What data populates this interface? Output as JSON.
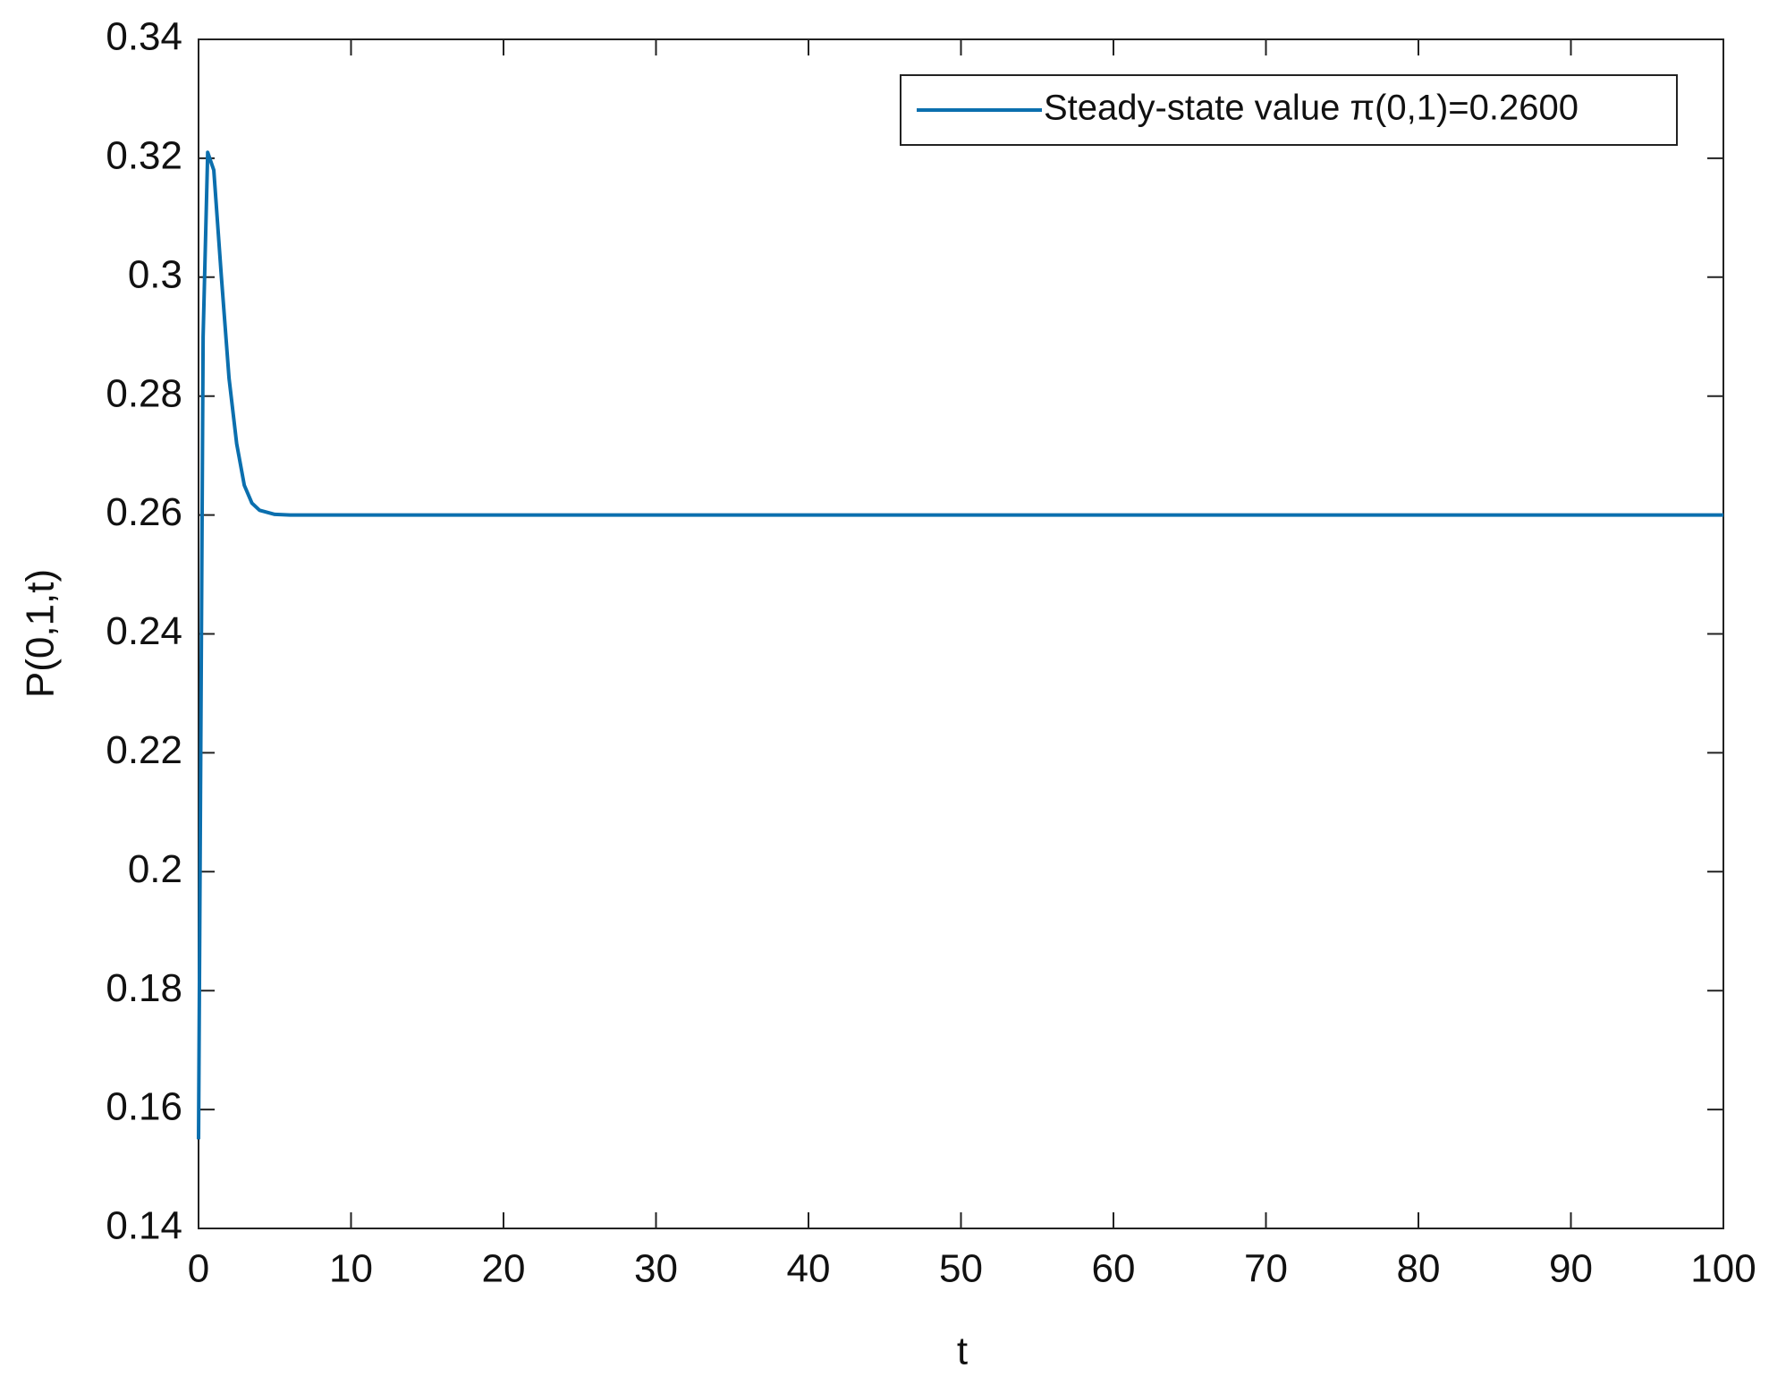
{
  "chart_data": {
    "type": "line",
    "x_label": "t",
    "y_label": "P(0,1,t)",
    "x": [
      0,
      0.3,
      0.6,
      1,
      1.5,
      2,
      2.5,
      3,
      3.5,
      4,
      5,
      6,
      100
    ],
    "series": [
      {
        "name": "Steady-state value π(0,1)=0.2600",
        "color": "#0b6fae",
        "values": [
          0.155,
          0.29,
          0.321,
          0.318,
          0.3,
          0.283,
          0.272,
          0.265,
          0.262,
          0.2608,
          0.2601,
          0.26,
          0.26
        ]
      }
    ],
    "xlim": [
      0,
      100
    ],
    "xticks": [
      0,
      10,
      20,
      30,
      40,
      50,
      60,
      70,
      80,
      90,
      100
    ],
    "ylim": [
      0.14,
      0.34
    ],
    "yticks": [
      0.14,
      0.16,
      0.18,
      0.2,
      0.22,
      0.24,
      0.26,
      0.28,
      0.3,
      0.32,
      0.34
    ],
    "grid": false,
    "legend": "upper right"
  }
}
